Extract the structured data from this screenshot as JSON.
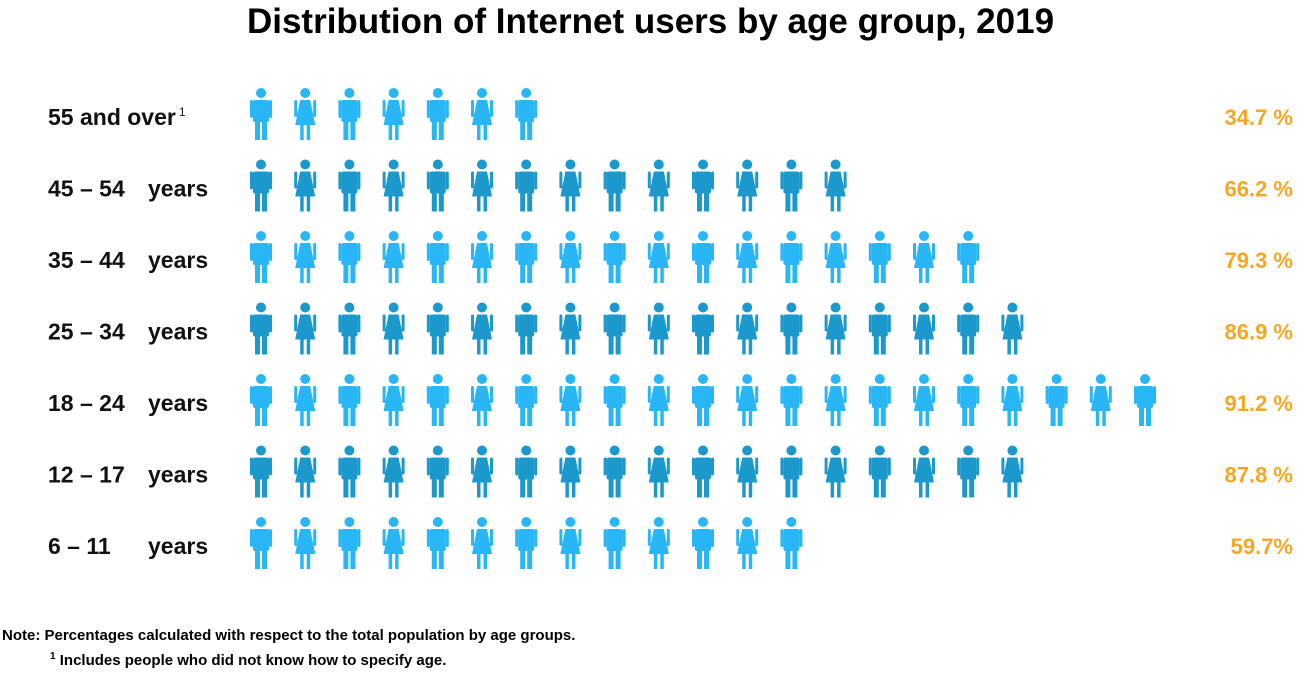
{
  "title": "Distribution of Internet users by age group, 2019",
  "colors": {
    "light_icon": "#29b6f6",
    "dark_icon": "#1b98cc",
    "percent": "#f5a623"
  },
  "icon_name": "person-icon",
  "chart_data": {
    "type": "pictograph",
    "title": "Distribution of Internet users by age group, 2019",
    "rows": [
      {
        "label_main": "55 and over",
        "label_sup": "1",
        "label_suffix": "",
        "value": 34.7,
        "value_label": "34.7 %",
        "icons": 7,
        "shade": "light"
      },
      {
        "label_main": "45 – 54",
        "label_sup": "",
        "label_suffix": "years",
        "value": 66.2,
        "value_label": "66.2 %",
        "icons": 14,
        "shade": "dark"
      },
      {
        "label_main": "35 – 44",
        "label_sup": "",
        "label_suffix": "years",
        "value": 79.3,
        "value_label": "79.3 %",
        "icons": 17,
        "shade": "light"
      },
      {
        "label_main": "25 – 34",
        "label_sup": "",
        "label_suffix": "years",
        "value": 86.9,
        "value_label": "86.9 %",
        "icons": 18,
        "shade": "dark"
      },
      {
        "label_main": "18 – 24",
        "label_sup": "",
        "label_suffix": "years",
        "value": 91.2,
        "value_label": "91.2 %",
        "icons": 21,
        "shade": "light"
      },
      {
        "label_main": "12 – 17",
        "label_sup": "",
        "label_suffix": "years",
        "value": 87.8,
        "value_label": "87.8 %",
        "icons": 18,
        "shade": "dark"
      },
      {
        "label_main": "6 – 11",
        "label_sup": "",
        "label_suffix": "years",
        "value": 59.7,
        "value_label": "59.7%",
        "icons": 13,
        "shade": "light"
      }
    ]
  },
  "notes": {
    "line1": "Note: Percentages calculated with respect to the total population by age groups.",
    "line2_sup": "1",
    "line2": "Includes people who did not know how to specify age."
  }
}
